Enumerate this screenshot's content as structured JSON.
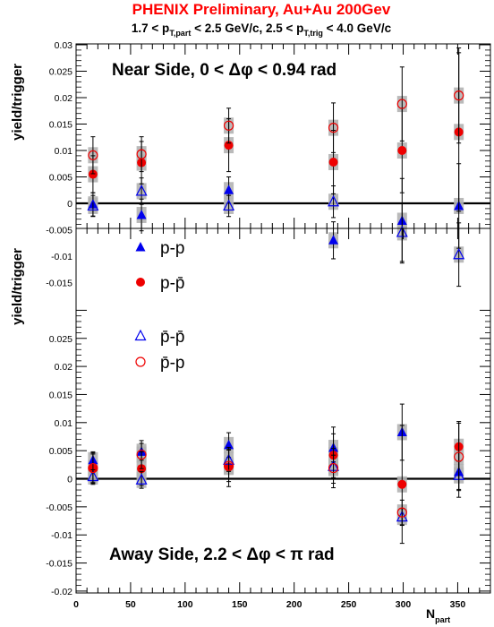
{
  "title": "PHENIX Preliminary, Au+Au 200Gev",
  "subtitle": {
    "p1": "1.7 < p",
    "s1": "T,part",
    "p2": " < 2.5 GeV/c, 2.5 < p",
    "s2": "T,trig",
    "p3": " < 4.0 GeV/c"
  },
  "colors": {
    "title": "#ff0000",
    "blue": "#0000ee",
    "red": "#ee0000",
    "syst": "#b3b3b3"
  },
  "x_axis": {
    "label_main": "N",
    "label_sub": "part",
    "ticks": [
      "0",
      "50",
      "100",
      "150",
      "200",
      "250",
      "300",
      "350"
    ]
  },
  "legend": {
    "pp": "p-p",
    "ppbar": "p-p̄",
    "pbarpbar": "p̄-p̄",
    "pbarp": "p̄-p"
  },
  "chart_data": [
    {
      "type": "scatter",
      "panel": "top",
      "annotation": "Near Side, 0 < Δφ < 0.94 rad",
      "ylabel": "yield/trigger",
      "xlim": [
        0,
        380
      ],
      "ylim": [
        -0.02,
        0.03
      ],
      "y_ticks": [
        "0.03",
        "0.025",
        "0.02",
        "0.015",
        "0.01",
        "0.005",
        "0",
        "-0.005",
        "-0.01",
        "-0.015"
      ],
      "x": [
        15.5,
        60,
        140,
        236,
        299,
        351
      ],
      "series": [
        {
          "name": "p-p",
          "marker": "filled-triangle",
          "color": "blue",
          "values": [
            -0.0002,
            -0.0022,
            0.0025,
            -0.007,
            -0.0033,
            -0.0005
          ],
          "stat_err": [
            0.0022,
            0.003,
            0.0025,
            0.0035,
            0.008,
            0.008
          ]
        },
        {
          "name": "p-p̄",
          "marker": "filled-circle",
          "color": "red",
          "values": [
            0.0055,
            0.0077,
            0.011,
            0.0078,
            0.01,
            0.0135
          ],
          "stat_err": [
            0.0035,
            0.004,
            0.005,
            0.006,
            0.008,
            0.015
          ]
        },
        {
          "name": "p̄-p̄",
          "marker": "open-triangle",
          "color": "blue",
          "values": [
            -0.0005,
            0.0023,
            -0.0005,
            0.0003,
            -0.0055,
            -0.0097
          ],
          "stat_err": [
            0.002,
            0.0025,
            0.002,
            0.003,
            0.0055,
            0.006
          ]
        },
        {
          "name": "p̄-p",
          "marker": "open-circle",
          "color": "red",
          "values": [
            0.0091,
            0.0093,
            0.0147,
            0.0143,
            0.0188,
            0.0204
          ],
          "stat_err": [
            0.0035,
            0.0033,
            0.0033,
            0.0047,
            0.007,
            0.009
          ]
        }
      ]
    },
    {
      "type": "scatter",
      "panel": "bottom",
      "annotation": "Away Side, 2.2 < Δφ < π rad",
      "ylabel": "yield/trigger",
      "xlim": [
        0,
        380
      ],
      "ylim": [
        -0.02,
        0.03
      ],
      "y_ticks": [
        "0.025",
        "0.02",
        "0.015",
        "0.01",
        "0.005",
        "0",
        "-0.005",
        "-0.01",
        "-0.015",
        "-0.02"
      ],
      "x": [
        15.5,
        60,
        140,
        236,
        299,
        351
      ],
      "series": [
        {
          "name": "p-p",
          "marker": "filled-triangle",
          "color": "blue",
          "values": [
            0.0033,
            0.0048,
            0.006,
            0.0055,
            0.0083,
            0.0012
          ],
          "stat_err": [
            0.0015,
            0.0015,
            0.0022,
            0.0025,
            0.005,
            0.0045
          ]
        },
        {
          "name": "p-p̄",
          "marker": "filled-circle",
          "color": "red",
          "values": [
            0.0018,
            0.0018,
            0.0021,
            0.0042,
            -0.001,
            0.0057
          ],
          "stat_err": [
            0.0028,
            0.003,
            0.0035,
            0.005,
            0.0105,
            0.0045
          ]
        },
        {
          "name": "p̄-p̄",
          "marker": "open-triangle",
          "color": "blue",
          "values": [
            0.0004,
            -0.0002,
            0.0033,
            0.0022,
            -0.0068,
            0.0006
          ],
          "stat_err": [
            0.0012,
            0.0015,
            0.002,
            0.002,
            0.0015,
            0.0025
          ]
        },
        {
          "name": "p̄-p",
          "marker": "open-circle",
          "color": "red",
          "values": [
            0.0019,
            0.0043,
            0.0023,
            0.0019,
            -0.006,
            0.0039
          ],
          "stat_err": [
            0.0025,
            0.0025,
            0.0028,
            0.0035,
            0.0022,
            0.006
          ]
        }
      ]
    }
  ]
}
